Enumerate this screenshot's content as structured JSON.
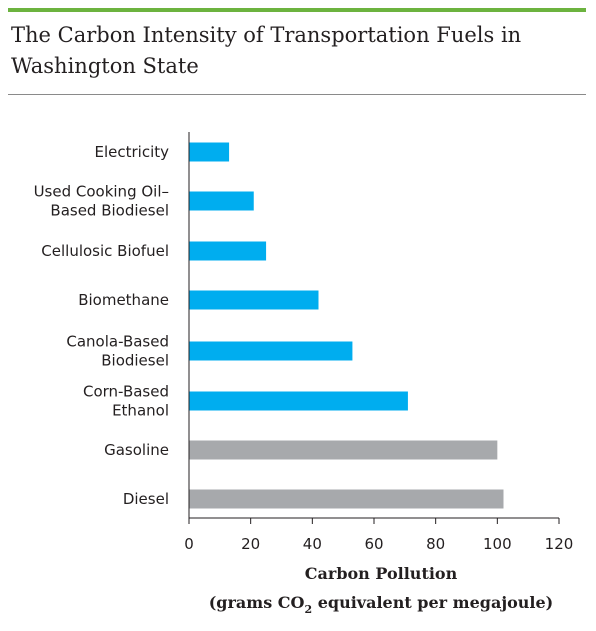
{
  "title": "The Carbon Intensity of Transportation Fuels in Washington State",
  "colors": {
    "accent_bar": "#6cb33f",
    "renewable": "#00adef",
    "fossil": "#a7a9ac"
  },
  "chart_data": {
    "type": "bar",
    "orientation": "horizontal",
    "categories": [
      [
        "Electricity"
      ],
      [
        "Used Cooking Oil–",
        "Based Biodiesel"
      ],
      [
        "Cellulosic Biofuel"
      ],
      [
        "Biomethane"
      ],
      [
        "Canola-Based",
        "Biodiesel"
      ],
      [
        "Corn-Based",
        "Ethanol"
      ],
      [
        "Gasoline"
      ],
      [
        "Diesel"
      ]
    ],
    "values": [
      13,
      21,
      25,
      42,
      53,
      71,
      100,
      102
    ],
    "bar_colors": [
      "renewable",
      "renewable",
      "renewable",
      "renewable",
      "renewable",
      "renewable",
      "fossil",
      "fossil"
    ],
    "xlabel_line1": "Carbon Pollution",
    "xlabel_line2_prefix": "(grams CO",
    "xlabel_line2_sub": "2",
    "xlabel_line2_suffix": " equivalent per megajoule)",
    "xlim": [
      0,
      120
    ],
    "xticks": [
      0,
      20,
      40,
      60,
      80,
      100,
      120
    ],
    "grid": false
  }
}
